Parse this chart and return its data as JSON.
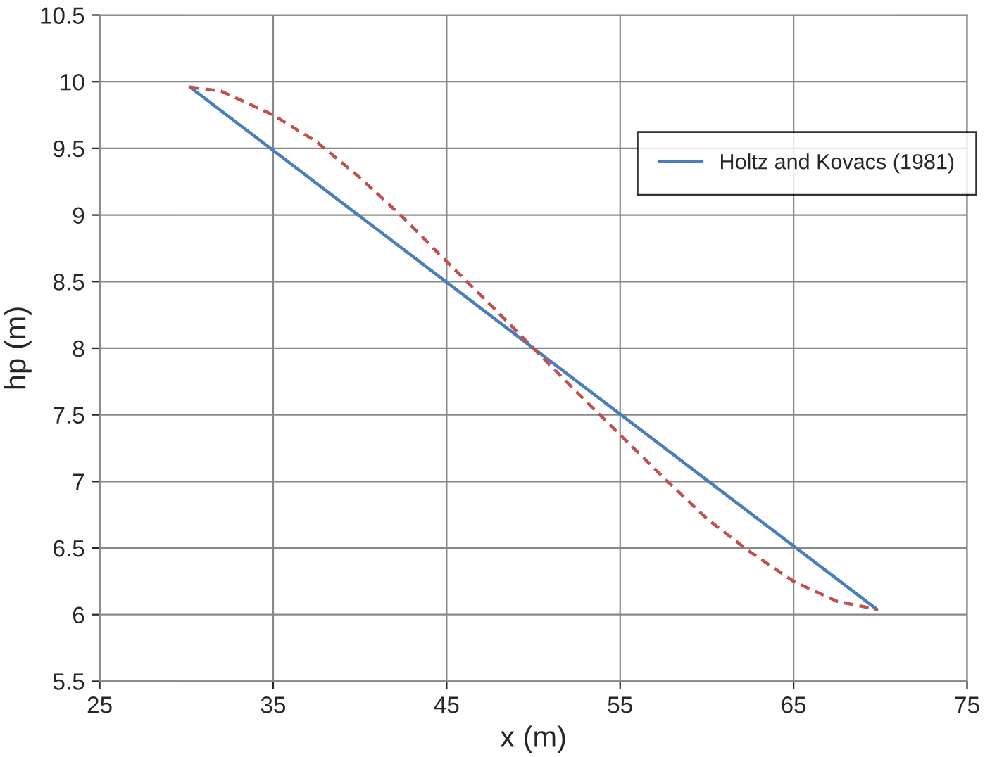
{
  "chart_data": {
    "type": "line",
    "xlabel": "x (m)",
    "ylabel": "hp (m)",
    "xlim": [
      25,
      75
    ],
    "xticks": [
      25,
      35,
      45,
      55,
      65,
      75
    ],
    "ylim": [
      5.5,
      10.5
    ],
    "yticks": [
      5.5,
      6,
      6.5,
      7,
      7.5,
      8,
      8.5,
      9,
      9.5,
      10,
      10.5
    ],
    "grid": true,
    "legend": "top right",
    "series": [
      {
        "name": "Holtz and Kovacs (1981)",
        "color": "#4a7ebb",
        "line_style": "solid",
        "x": [
          30.2,
          69.8
        ],
        "values": [
          9.96,
          6.04
        ]
      },
      {
        "color": "#c0504d",
        "line_style": "dashed",
        "x": [
          30.2,
          32,
          35,
          37.5,
          40,
          42.5,
          45,
          47.5,
          50,
          52.5,
          55,
          57.5,
          60,
          62.5,
          65,
          67.5,
          69.8
        ],
        "values": [
          9.96,
          9.93,
          9.75,
          9.55,
          9.28,
          8.98,
          8.65,
          8.33,
          8.0,
          7.67,
          7.35,
          7.03,
          6.72,
          6.47,
          6.25,
          6.1,
          6.04
        ]
      }
    ]
  }
}
